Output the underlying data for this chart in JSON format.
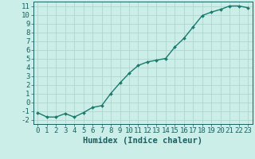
{
  "x": [
    0,
    1,
    2,
    3,
    4,
    5,
    6,
    7,
    8,
    9,
    10,
    11,
    12,
    13,
    14,
    15,
    16,
    17,
    18,
    19,
    20,
    21,
    22,
    23
  ],
  "y": [
    -1.2,
    -1.7,
    -1.7,
    -1.3,
    -1.7,
    -1.2,
    -0.6,
    -0.4,
    1.0,
    2.2,
    3.3,
    4.2,
    4.6,
    4.8,
    5.0,
    6.3,
    7.3,
    8.6,
    9.9,
    10.3,
    10.6,
    11.0,
    11.0,
    10.8
  ],
  "line_color": "#1a7a6e",
  "marker": "D",
  "marker_size": 2.0,
  "background_color": "#cceee8",
  "grid_color": "#b0d4ce",
  "xlabel": "Humidex (Indice chaleur)",
  "xlim": [
    -0.5,
    23.5
  ],
  "ylim": [
    -2.5,
    11.5
  ],
  "xticks": [
    0,
    1,
    2,
    3,
    4,
    5,
    6,
    7,
    8,
    9,
    10,
    11,
    12,
    13,
    14,
    15,
    16,
    17,
    18,
    19,
    20,
    21,
    22,
    23
  ],
  "yticks": [
    -2,
    -1,
    0,
    1,
    2,
    3,
    4,
    5,
    6,
    7,
    8,
    9,
    10,
    11
  ],
  "font_color": "#1a6060",
  "font_size": 6.5,
  "xlabel_fontsize": 7.5,
  "linewidth": 1.0
}
